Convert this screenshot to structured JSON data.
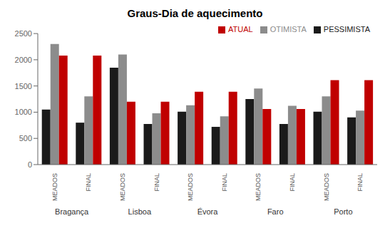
{
  "chart_data": {
    "type": "bar",
    "title": "Graus-Dia de aquecimento",
    "category_groups": [
      "Bragança",
      "Lisboa",
      "Évora",
      "Faro",
      "Porto"
    ],
    "categories": [
      "MEADOS",
      "FINAL",
      "MEADOS",
      "FINAL",
      "MEADOS",
      "FINAL",
      "MEADOS",
      "FINAL",
      "MEADOS",
      "FINAL"
    ],
    "series": [
      {
        "name": "PESSIMISTA",
        "color": "#1a1a1a",
        "values": [
          1050,
          800,
          1850,
          775,
          1010,
          720,
          1250,
          775,
          1010,
          900
        ]
      },
      {
        "name": "OTIMISTA",
        "color": "#8c8c8c",
        "values": [
          2300,
          1300,
          2100,
          980,
          1130,
          920,
          1450,
          1120,
          1300,
          1030
        ]
      },
      {
        "name": "ATUAL",
        "color": "#c00000",
        "values": [
          2080,
          2080,
          1200,
          1200,
          1390,
          1390,
          1060,
          1060,
          1610,
          1610
        ]
      }
    ],
    "ylim": [
      0,
      2500
    ],
    "yticks": [
      0,
      500,
      1000,
      1500,
      2000,
      2500
    ],
    "grid": false,
    "legend": "upper right"
  }
}
